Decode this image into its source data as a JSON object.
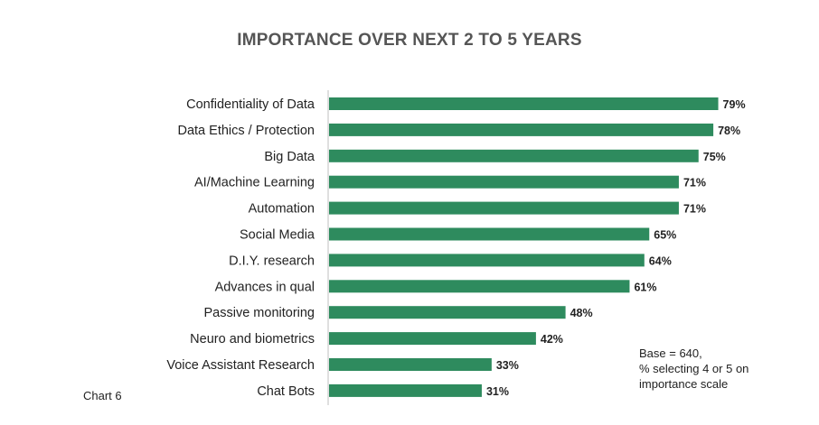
{
  "title": "IMPORTANCE OVER NEXT 2 TO 5 YEARS",
  "note": {
    "line1": "Base = 640,",
    "line2": "% selecting 4 or 5 on",
    "line3": "importance scale"
  },
  "chart_number": "Chart 6",
  "colors": {
    "bar": "#2e8b5e",
    "axis": "#bfbfbf"
  },
  "chart_data": {
    "type": "bar",
    "orientation": "horizontal",
    "categories": [
      "Confidentiality of Data",
      "Data Ethics / Protection",
      "Big Data",
      "AI/Machine Learning",
      "Automation",
      "Social Media",
      "D.I.Y. research",
      "Advances in qual",
      "Passive monitoring",
      "Neuro and biometrics",
      "Voice Assistant Research",
      "Chat Bots"
    ],
    "values": [
      79,
      78,
      75,
      71,
      71,
      65,
      64,
      61,
      48,
      42,
      33,
      31
    ],
    "value_labels": [
      "79%",
      "78%",
      "75%",
      "71%",
      "71%",
      "65%",
      "64%",
      "61%",
      "48%",
      "42%",
      "33%",
      "31%"
    ],
    "unit": "%",
    "xlim": [
      0,
      100
    ],
    "grid": false,
    "legend": "none"
  }
}
